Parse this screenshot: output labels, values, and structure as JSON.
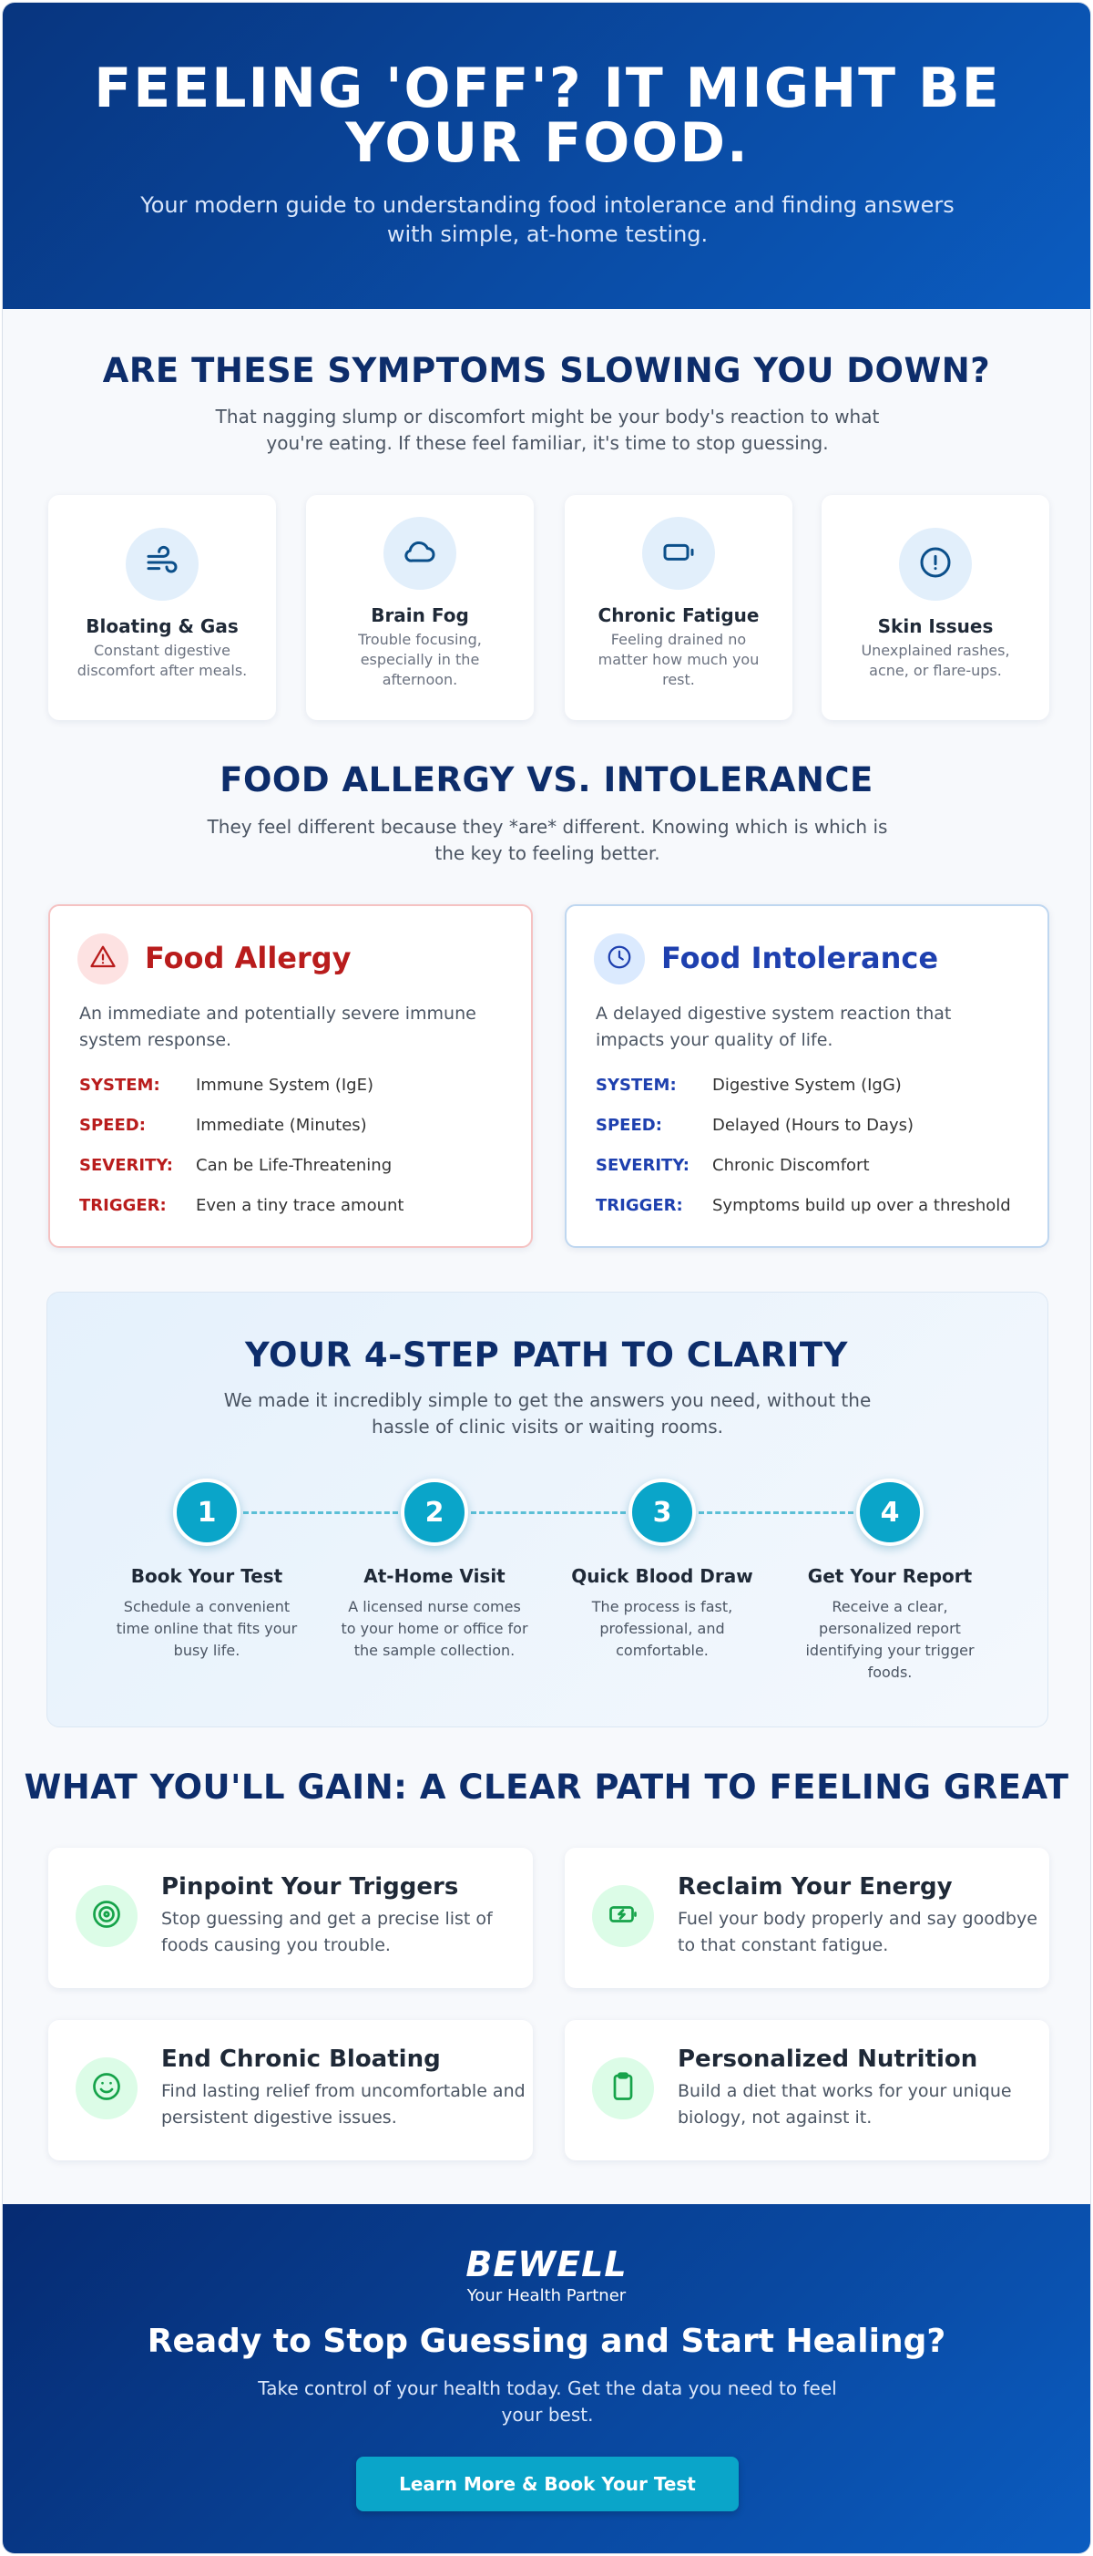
{
  "header": {
    "title": "FEELING 'OFF'? IT MIGHT BE YOUR FOOD.",
    "subtitle": "Your modern guide to understanding food intolerance and finding answers with simple, at-home testing."
  },
  "symptoms": {
    "title": "ARE THESE SYMPTOMS SLOWING YOU DOWN?",
    "text": "That nagging slump or discomfort might be your body's reaction to what you're eating. If these feel familiar, it's time to stop guessing.",
    "cards": [
      {
        "title": "Bloating & Gas",
        "text": "Constant digestive discomfort after meals."
      },
      {
        "title": "Brain Fog",
        "text": "Trouble focusing, especially in the afternoon."
      },
      {
        "title": "Chronic Fatigue",
        "text": "Feeling drained no matter how much you rest."
      },
      {
        "title": "Skin Issues",
        "text": "Unexplained rashes, acne, or flare-ups."
      }
    ]
  },
  "comparison": {
    "title": "FOOD ALLERGY VS. INTOLERANCE",
    "text": "They feel different because they *are* different. Knowing which is which is the key to feeling better.",
    "cards": [
      {
        "title": "Food Allergy",
        "description": "An immediate and potentially severe immune system response.",
        "rows": [
          {
            "label": "SYSTEM:",
            "value": "Immune System (IgE)"
          },
          {
            "label": "SPEED:",
            "value": "Immediate (Minutes)"
          },
          {
            "label": "SEVERITY:",
            "value": "Can be Life-Threatening"
          },
          {
            "label": "TRIGGER:",
            "value": "Even a tiny trace amount"
          }
        ]
      },
      {
        "title": "Food Intolerance",
        "description": "A delayed digestive system reaction that impacts your quality of life.",
        "rows": [
          {
            "label": "SYSTEM:",
            "value": "Digestive System (IgG)"
          },
          {
            "label": "SPEED:",
            "value": "Delayed (Hours to Days)"
          },
          {
            "label": "SEVERITY:",
            "value": "Chronic Discomfort"
          },
          {
            "label": "TRIGGER:",
            "value": "Symptoms build up over a threshold"
          }
        ]
      }
    ]
  },
  "steps": {
    "title": "YOUR 4-STEP PATH TO CLARITY",
    "text": "We made it incredibly simple to get the answers you need, without the hassle of clinic visits or waiting rooms.",
    "items": [
      {
        "number": 1,
        "title": "Book Your Test",
        "text": "Schedule a convenient time online that fits your busy life."
      },
      {
        "number": 2,
        "title": "At-Home Visit",
        "text": "A licensed nurse comes to your home or office for the sample collection."
      },
      {
        "number": 3,
        "title": "Quick Blood Draw",
        "text": "The process is fast, professional, and comfortable."
      },
      {
        "number": 4,
        "title": "Get Your Report",
        "text": "Receive a clear, personalized report identifying your trigger foods."
      }
    ]
  },
  "gains": {
    "title": "WHAT YOU'LL GAIN: A CLEAR PATH TO FEELING GREAT",
    "items": [
      {
        "title": "Pinpoint Your Triggers",
        "text": "Stop guessing and get a precise list of foods causing you trouble."
      },
      {
        "title": "Reclaim Your Energy",
        "text": "Fuel your body properly and say goodbye to that constant fatigue."
      },
      {
        "title": "End Chronic Bloating",
        "text": "Find lasting relief from uncomfortable and persistent digestive issues."
      },
      {
        "title": "Personalized Nutrition",
        "text": "Build a diet that works for your unique biology, not against it."
      }
    ]
  },
  "footer": {
    "brand": "BEWELL",
    "tagline": "Your Health Partner",
    "title": "Ready to Stop Guessing and Start Healing?",
    "text": "Take control of your health today. Get the data you need to feel your best.",
    "button": "Learn More & Book Your Test"
  }
}
